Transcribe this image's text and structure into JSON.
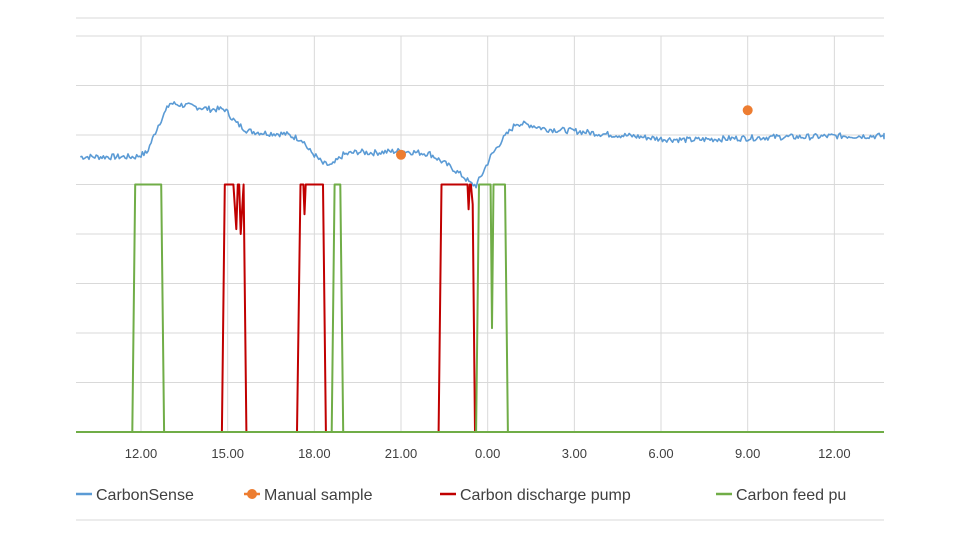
{
  "chart_data": {
    "type": "line",
    "title": "",
    "xlabel": "",
    "ylabel": "",
    "grid": true,
    "legend_position": "bottom",
    "x_ticks": [
      "12.00",
      "15.00",
      "18.00",
      "21.00",
      "0.00",
      "3.00",
      "6.00",
      "9.00",
      "12.00"
    ],
    "x_unit": "hours elapsed",
    "x_range": [
      9.9,
      38.5
    ],
    "y_range": [
      0,
      8.5
    ],
    "y_tick_values": [
      0,
      1,
      2,
      3,
      4,
      5,
      6,
      7,
      8
    ],
    "colors": {
      "CarbonSense": "#5b9bd5",
      "Manual sample": "#ed7d31",
      "Carbon discharge pump": "#c00000",
      "Carbon feed pump": "#70ad47",
      "grid": "#d9d9d9",
      "axis": "#bfbfbf"
    },
    "series": [
      {
        "name": "CarbonSense",
        "kind": "line",
        "x": [
          9.9,
          11.0,
          11.8,
          12.2,
          12.6,
          13.0,
          13.5,
          14.0,
          14.4,
          14.9,
          15.3,
          15.7,
          16.3,
          17.0,
          17.6,
          17.8,
          18.0,
          18.3,
          18.6,
          19.0,
          19.5,
          20.0,
          21.0,
          22.0,
          22.8,
          23.2,
          23.4,
          23.6,
          23.8,
          24.1,
          24.5,
          25.0,
          25.5,
          26.0,
          27.0,
          28.0,
          29.0,
          30.0,
          31.0,
          32.0,
          33.0,
          34.0,
          35.0,
          36.0,
          37.0,
          38.5
        ],
        "y": [
          5.56,
          5.56,
          5.56,
          5.64,
          6.2,
          6.64,
          6.6,
          6.56,
          6.52,
          6.52,
          6.24,
          6.08,
          6.04,
          6.02,
          5.9,
          5.7,
          5.6,
          5.42,
          5.38,
          5.6,
          5.66,
          5.64,
          5.68,
          5.62,
          5.32,
          5.14,
          5.02,
          4.98,
          5.2,
          5.56,
          5.9,
          6.24,
          6.2,
          6.12,
          6.08,
          6.02,
          5.98,
          5.92,
          5.9,
          5.92,
          5.94,
          5.96,
          5.96,
          5.98,
          5.98,
          5.98
        ]
      },
      {
        "name": "Manual sample",
        "kind": "points",
        "x": [
          21.0,
          33.0
        ],
        "y": [
          5.6,
          6.5
        ]
      },
      {
        "name": "Carbon discharge pump",
        "kind": "step",
        "x": [
          14.8,
          14.9,
          15.2,
          15.3,
          15.35,
          15.4,
          15.45,
          15.55,
          15.65,
          17.4,
          17.52,
          17.62,
          17.66,
          17.7,
          17.74,
          18.3,
          18.4,
          22.3,
          22.4,
          23.3,
          23.34,
          23.38,
          23.42,
          23.48,
          23.56
        ],
        "y": [
          0,
          5,
          5,
          4.1,
          5,
          5,
          4.0,
          5,
          0,
          0,
          5,
          5,
          4.4,
          5,
          5,
          5,
          0,
          0,
          5,
          5,
          4.5,
          5,
          5,
          4.6,
          0
        ]
      },
      {
        "name": "Carbon feed pump",
        "kind": "step",
        "x": [
          11.7,
          11.8,
          12.7,
          12.8,
          18.6,
          18.7,
          18.9,
          19.0,
          23.6,
          23.7,
          24.1,
          24.15,
          24.2,
          24.6,
          24.7
        ],
        "y": [
          0,
          5,
          5,
          0,
          0,
          5,
          5,
          0,
          0,
          5,
          5,
          2.1,
          5,
          5,
          0
        ]
      }
    ]
  },
  "legend": [
    {
      "label": "CarbonSense",
      "color": "#5b9bd5",
      "marker": "line"
    },
    {
      "label": "Manual sample",
      "color": "#ed7d31",
      "marker": "dot"
    },
    {
      "label": "Carbon discharge pump",
      "color": "#c00000",
      "marker": "line"
    },
    {
      "label": "Carbon feed pu",
      "color": "#70ad47",
      "marker": "line"
    }
  ]
}
